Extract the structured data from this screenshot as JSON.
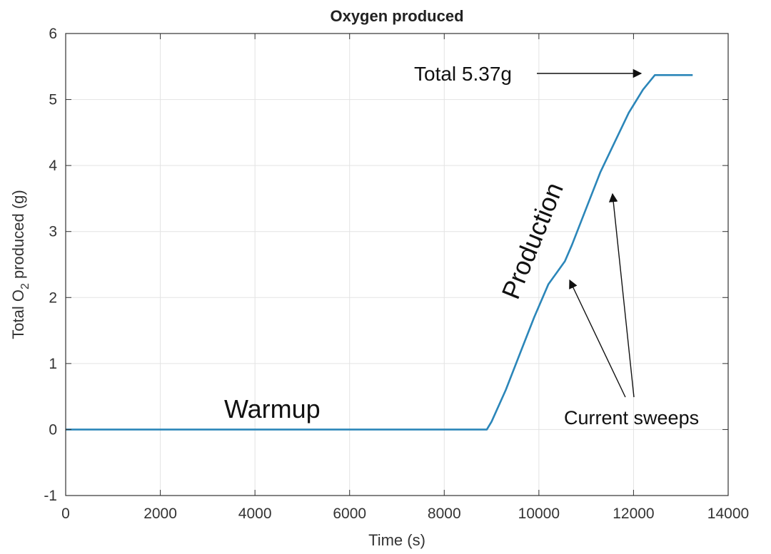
{
  "chart_data": {
    "type": "line",
    "title": "Oxygen produced",
    "xlabel": "Time (s)",
    "ylabel": "Total O2 produced (g)",
    "ylabel_parts": {
      "before": "Total O",
      "sub": "2",
      "after": " produced (g)"
    },
    "xlim": [
      0,
      14000
    ],
    "ylim": [
      -1,
      6
    ],
    "xticks": [
      0,
      2000,
      4000,
      6000,
      8000,
      10000,
      12000,
      14000
    ],
    "yticks": [
      -1,
      0,
      1,
      2,
      3,
      4,
      5,
      6
    ],
    "grid": true,
    "series": [
      {
        "color": "#2b86b9",
        "x": [
          0,
          8900,
          9000,
          9300,
          9600,
          9900,
          10200,
          10400,
          10550,
          10700,
          11000,
          11300,
          11600,
          11900,
          12200,
          12450,
          13250
        ],
        "y": [
          0,
          0,
          0.12,
          0.6,
          1.15,
          1.7,
          2.2,
          2.4,
          2.55,
          2.8,
          3.35,
          3.9,
          4.35,
          4.8,
          5.15,
          5.37,
          5.37
        ]
      }
    ],
    "annotations": [
      {
        "text": "Total 5.37g",
        "x": 7300,
        "y": 5.37
      },
      {
        "text": "Production",
        "x": 9750,
        "y": 2.8
      },
      {
        "text": "Warmup",
        "x": 4300,
        "y": 0.3
      },
      {
        "text": "Current sweeps",
        "x": 11800,
        "y": 0.18
      }
    ]
  }
}
